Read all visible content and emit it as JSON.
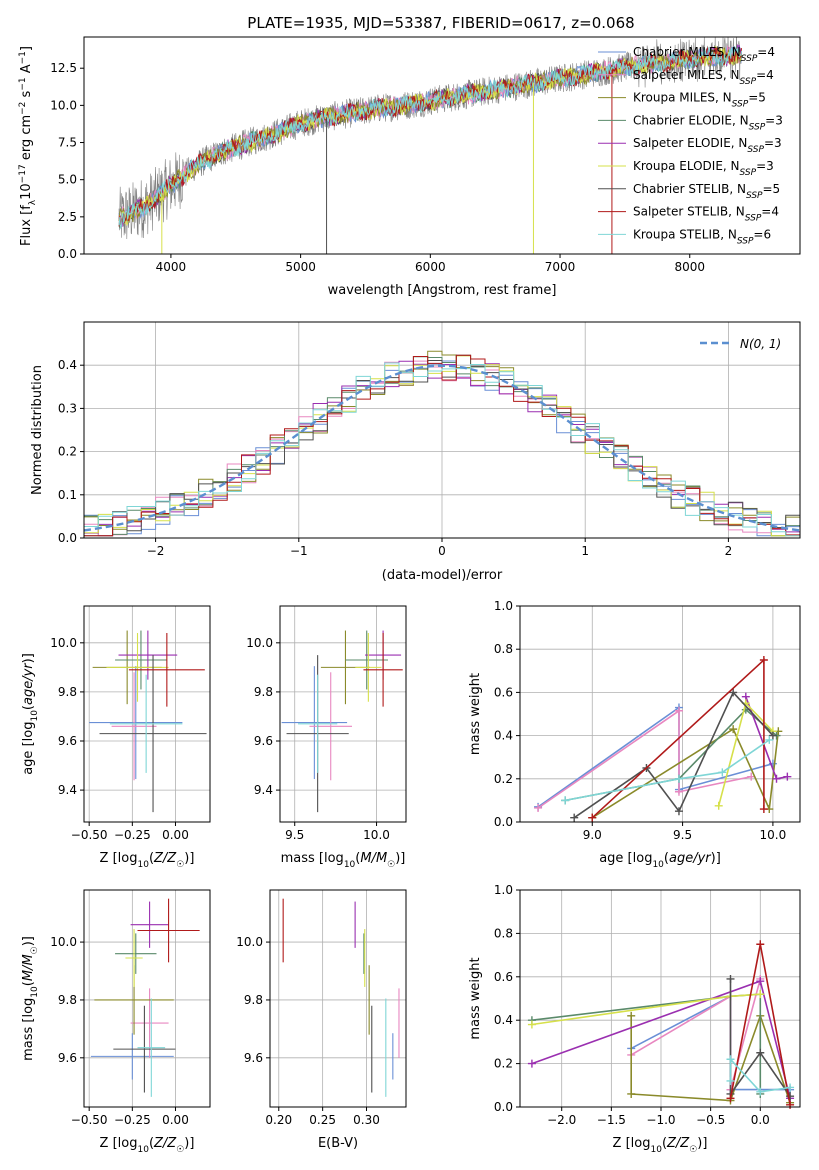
{
  "figure": {
    "title": "PLATE=1935, MJD=53387, FIBERID=0617, z=0.068"
  },
  "legend_entries": [
    {
      "name": "Chabrier MILES, N",
      "sub": "SSP",
      "tail": "=4",
      "color": "#6a8fd6"
    },
    {
      "name": "Salpeter MILES, N",
      "sub": "SSP",
      "tail": "=4",
      "color": "#e887c0"
    },
    {
      "name": "Kroupa MILES, N",
      "sub": "SSP",
      "tail": "=5",
      "color": "#8a8a2a"
    },
    {
      "name": "Chabrier ELODIE, N",
      "sub": "SSP",
      "tail": "=3",
      "color": "#5a8a6a"
    },
    {
      "name": "Salpeter ELODIE, N",
      "sub": "SSP",
      "tail": "=3",
      "color": "#9a2fb0"
    },
    {
      "name": "Kroupa ELODIE, N",
      "sub": "SSP",
      "tail": "=3",
      "color": "#d6e04a"
    },
    {
      "name": "Chabrier STELIB, N",
      "sub": "SSP",
      "tail": "=5",
      "color": "#505050"
    },
    {
      "name": "Salpeter STELIB, N",
      "sub": "SSP",
      "tail": "=4",
      "color": "#b01a1a"
    },
    {
      "name": "Kroupa STELIB, N",
      "sub": "SSP",
      "tail": "=6",
      "color": "#7fd6d6"
    }
  ],
  "chart_data": [
    {
      "id": "spectrum",
      "type": "line",
      "xlabel": "wavelength [Angstrom, rest frame]",
      "ylabel": "Flux [f_λ 10^-17 erg cm^-2 s^-1 A^-1]",
      "xlim": [
        3330,
        8850
      ],
      "ylim": [
        0,
        14.6
      ],
      "xticks": [
        4000,
        5000,
        6000,
        7000,
        8000
      ],
      "yticks": [
        0.0,
        2.5,
        5.0,
        7.5,
        10.0,
        12.5
      ],
      "ytick_labels": [
        "0.0",
        "2.5",
        "5.0",
        "7.5",
        "10.0",
        "12.5"
      ],
      "continuum": {
        "x": [
          3600,
          3800,
          4000,
          4200,
          4400,
          4600,
          4800,
          5000,
          5200,
          5400,
          5600,
          5800,
          6000,
          6200,
          6400,
          6600,
          6800,
          7000,
          7200,
          7400,
          7600,
          7800,
          8000,
          8200,
          8400
        ],
        "y": [
          2.4,
          3.2,
          4.6,
          6.0,
          6.9,
          7.5,
          8.1,
          8.8,
          9.2,
          9.5,
          9.8,
          10.0,
          10.3,
          10.6,
          10.9,
          11.2,
          11.5,
          11.8,
          12.1,
          12.4,
          12.7,
          12.9,
          13.1,
          13.3,
          13.4
        ]
      }
    },
    {
      "id": "residuals",
      "type": "histogram",
      "xlabel": "(data-model)/error",
      "ylabel": "Normed distribution",
      "xlim": [
        -2.5,
        2.5
      ],
      "ylim": [
        0,
        0.5
      ],
      "xticks": [
        -2,
        -1,
        0,
        1,
        2
      ],
      "yticks": [
        0.0,
        0.1,
        0.2,
        0.3,
        0.4
      ],
      "ytick_labels": [
        "0.0",
        "0.1",
        "0.2",
        "0.3",
        "0.4"
      ],
      "gaussian_label": "N(0, 1)",
      "bin_width": 0.1
    },
    {
      "id": "age_vs_Z",
      "type": "errorbar",
      "xlabel": "Z [log10(Z/Z☉)]",
      "ylabel": "age  [log10(age/yr)]",
      "xlim": [
        -0.53,
        0.2
      ],
      "ylim": [
        9.27,
        10.15
      ],
      "xticks": [
        -0.5,
        -0.25,
        0.0
      ],
      "xtick_labels": [
        "−0.50",
        "−0.25",
        "0.00"
      ],
      "yticks": [
        9.4,
        9.6,
        9.8,
        10.0
      ],
      "ytick_labels": [
        "9.4",
        "9.6",
        "9.8",
        "10.0"
      ],
      "points": [
        {
          "x": -0.23,
          "xerr": 0.27,
          "y": 9.675,
          "yerr": 0.23
        },
        {
          "x": -0.24,
          "xerr": 0.13,
          "y": 9.66,
          "yerr": 0.22
        },
        {
          "x": -0.28,
          "xerr": 0.2,
          "y": 9.9,
          "yerr": 0.15
        },
        {
          "x": -0.2,
          "xerr": 0.15,
          "y": 9.93,
          "yerr": 0.12
        },
        {
          "x": -0.16,
          "xerr": 0.17,
          "y": 9.95,
          "yerr": 0.1
        },
        {
          "x": -0.22,
          "xerr": 0.18,
          "y": 9.9,
          "yerr": 0.14
        },
        {
          "x": -0.13,
          "xerr": 0.31,
          "y": 9.63,
          "yerr": 0.32
        },
        {
          "x": -0.05,
          "xerr": 0.22,
          "y": 9.89,
          "yerr": 0.15
        },
        {
          "x": -0.17,
          "xerr": 0.21,
          "y": 9.67,
          "yerr": 0.2
        }
      ]
    },
    {
      "id": "age_vs_mass",
      "type": "errorbar",
      "xlabel": "mass [log10(M/M☉)]",
      "xlim": [
        9.41,
        10.18
      ],
      "ylim": [
        9.27,
        10.15
      ],
      "xticks": [
        9.5,
        10.0
      ],
      "xtick_labels": [
        "9.5",
        "10.0"
      ],
      "yticks": [
        9.4,
        9.6,
        9.8,
        10.0
      ],
      "ytick_labels": [
        "9.4",
        "9.6",
        "9.8",
        "10.0"
      ],
      "points": [
        {
          "x": 9.62,
          "xerr": 0.2,
          "y": 9.675,
          "yerr": 0.23
        },
        {
          "x": 9.72,
          "xerr": 0.13,
          "y": 9.66,
          "yerr": 0.22
        },
        {
          "x": 9.81,
          "xerr": 0.15,
          "y": 9.9,
          "yerr": 0.15
        },
        {
          "x": 9.94,
          "xerr": 0.13,
          "y": 9.93,
          "yerr": 0.12
        },
        {
          "x": 10.04,
          "xerr": 0.11,
          "y": 9.95,
          "yerr": 0.1
        },
        {
          "x": 9.95,
          "xerr": 0.08,
          "y": 9.9,
          "yerr": 0.14
        },
        {
          "x": 9.64,
          "xerr": 0.19,
          "y": 9.63,
          "yerr": 0.32
        },
        {
          "x": 10.04,
          "xerr": 0.12,
          "y": 9.89,
          "yerr": 0.15
        },
        {
          "x": 9.64,
          "xerr": 0.12,
          "y": 9.67,
          "yerr": 0.2
        }
      ]
    },
    {
      "id": "weight_vs_age",
      "type": "line",
      "xlabel": "age  [log10(age/yr)]",
      "ylabel": "mass weight",
      "xlim": [
        8.6,
        10.15
      ],
      "ylim": [
        0,
        1.0
      ],
      "xticks": [
        9.0,
        9.5,
        10.0
      ],
      "xtick_labels": [
        "9.0",
        "9.5",
        "10.0"
      ],
      "yticks": [
        0.0,
        0.2,
        0.4,
        0.6,
        0.8,
        1.0
      ],
      "ytick_labels": [
        "0.0",
        "0.2",
        "0.4",
        "0.6",
        "0.8",
        "1.0"
      ],
      "series": [
        {
          "x": [
            8.7,
            9.48,
            9.48,
            10.0
          ],
          "y": [
            0.07,
            0.53,
            0.15,
            0.27
          ]
        },
        {
          "x": [
            8.7,
            9.48,
            9.48,
            9.88
          ],
          "y": [
            0.065,
            0.515,
            0.14,
            0.21
          ]
        },
        {
          "x": [
            9.0,
            9.78,
            9.98,
            10.03
          ],
          "y": [
            0.02,
            0.43,
            0.06,
            0.42
          ]
        },
        {
          "x": [
            8.85,
            9.48,
            9.85,
            10.02
          ],
          "y": [
            0.1,
            0.2,
            0.52,
            0.4
          ]
        },
        {
          "x": [
            9.85,
            10.02,
            10.08
          ],
          "y": [
            0.58,
            0.2,
            0.21
          ]
        },
        {
          "x": [
            9.7,
            9.85,
            10.0
          ],
          "y": [
            0.075,
            0.55,
            0.42
          ]
        },
        {
          "x": [
            8.9,
            9.3,
            9.48,
            9.78,
            10.0
          ],
          "y": [
            0.02,
            0.25,
            0.05,
            0.6,
            0.4
          ]
        },
        {
          "x": [
            9.0,
            9.95,
            9.95
          ],
          "y": [
            0.02,
            0.75,
            0.06
          ]
        },
        {
          "x": [
            8.85,
            9.48,
            9.72,
            9.98
          ],
          "y": [
            0.1,
            0.2,
            0.23,
            0.38
          ]
        }
      ]
    },
    {
      "id": "mass_vs_Z",
      "type": "errorbar",
      "xlabel": "Z [log10(Z/Z☉)]",
      "ylabel": "mass [log10(M/M☉)]",
      "xlim": [
        -0.53,
        0.2
      ],
      "ylim": [
        9.43,
        10.18
      ],
      "xticks": [
        -0.5,
        -0.25,
        0.0
      ],
      "xtick_labels": [
        "−0.50",
        "−0.25",
        "0.00"
      ],
      "yticks": [
        9.6,
        9.8,
        10.0
      ],
      "ytick_labels": [
        "9.6",
        "9.8",
        "10.0"
      ],
      "points": [
        {
          "x": -0.25,
          "xerr": 0.24,
          "y": 9.605,
          "yerr": 0.08
        },
        {
          "x": -0.15,
          "xerr": 0.11,
          "y": 9.72,
          "yerr": 0.12
        },
        {
          "x": -0.24,
          "xerr": 0.23,
          "y": 9.8,
          "yerr": 0.12
        },
        {
          "x": -0.23,
          "xerr": 0.12,
          "y": 9.96,
          "yerr": 0.07
        },
        {
          "x": -0.15,
          "xerr": 0.11,
          "y": 10.06,
          "yerr": 0.08
        },
        {
          "x": -0.24,
          "xerr": 0.05,
          "y": 9.945,
          "yerr": 0.1
        },
        {
          "x": -0.18,
          "xerr": 0.18,
          "y": 9.63,
          "yerr": 0.15
        },
        {
          "x": -0.04,
          "xerr": 0.18,
          "y": 10.04,
          "yerr": 0.11
        },
        {
          "x": -0.14,
          "xerr": 0.08,
          "y": 9.635,
          "yerr": 0.17
        }
      ]
    },
    {
      "id": "mass_vs_EBV",
      "type": "errorbar",
      "xlabel": "E(B-V)",
      "xlim": [
        0.19,
        0.345
      ],
      "ylim": [
        9.43,
        10.18
      ],
      "xticks": [
        0.2,
        0.25,
        0.3
      ],
      "xtick_labels": [
        "0.20",
        "0.25",
        "0.30"
      ],
      "yticks": [
        9.6,
        9.8,
        10.0
      ],
      "ytick_labels": [
        "9.6",
        "9.8",
        "10.0"
      ],
      "points": [
        {
          "x": 0.33,
          "y": 9.605,
          "yerr": 0.08
        },
        {
          "x": 0.337,
          "y": 9.72,
          "yerr": 0.12
        },
        {
          "x": 0.303,
          "y": 9.8,
          "yerr": 0.12
        },
        {
          "x": 0.297,
          "y": 9.96,
          "yerr": 0.07
        },
        {
          "x": 0.287,
          "y": 10.06,
          "yerr": 0.08
        },
        {
          "x": 0.298,
          "y": 9.945,
          "yerr": 0.1
        },
        {
          "x": 0.306,
          "y": 9.63,
          "yerr": 0.15
        },
        {
          "x": 0.205,
          "y": 10.04,
          "yerr": 0.11
        },
        {
          "x": 0.322,
          "y": 9.635,
          "yerr": 0.17
        }
      ]
    },
    {
      "id": "weight_vs_Z",
      "type": "line",
      "xlabel": "Z [log10(Z/Z☉)]",
      "ylabel": "mass weight",
      "xlim": [
        -2.42,
        0.4
      ],
      "ylim": [
        0,
        1.0
      ],
      "xticks": [
        -2.0,
        -1.5,
        -1.0,
        -0.5,
        0.0
      ],
      "xtick_labels": [
        "−2.0",
        "−1.5",
        "−1.0",
        "−0.5",
        "0.0"
      ],
      "yticks": [
        0.0,
        0.2,
        0.4,
        0.6,
        0.8,
        1.0
      ],
      "ytick_labels": [
        "0.0",
        "0.2",
        "0.4",
        "0.6",
        "0.8",
        "1.0"
      ],
      "series": [
        {
          "x": [
            -1.3,
            -0.3,
            -0.3,
            0.3
          ],
          "y": [
            0.27,
            0.51,
            0.08,
            0.08
          ]
        },
        {
          "x": [
            -1.3,
            -0.3,
            -0.3,
            0.0
          ],
          "y": [
            0.24,
            0.51,
            0.08,
            0.59
          ]
        },
        {
          "x": [
            -1.3,
            -1.3,
            -0.3,
            0.0,
            0.3
          ],
          "y": [
            0.42,
            0.06,
            0.03,
            0.42,
            0.02
          ]
        },
        {
          "x": [
            -2.3,
            -0.3,
            0.0,
            0.0
          ],
          "y": [
            0.4,
            0.51,
            0.52,
            0.06
          ]
        },
        {
          "x": [
            -2.3,
            0.0,
            0.3
          ],
          "y": [
            0.2,
            0.58,
            0.04
          ]
        },
        {
          "x": [
            -2.3,
            -0.3,
            0.0
          ],
          "y": [
            0.38,
            0.51,
            0.52
          ]
        },
        {
          "x": [
            -0.3,
            -0.3,
            0.0,
            0.3
          ],
          "y": [
            0.59,
            0.06,
            0.25,
            0.05
          ]
        },
        {
          "x": [
            -0.3,
            0.0,
            0.3
          ],
          "y": [
            0.04,
            0.75,
            0.01
          ]
        },
        {
          "x": [
            -0.3,
            -0.3,
            0.0,
            0.3
          ],
          "y": [
            0.12,
            0.22,
            0.07,
            0.09
          ]
        }
      ]
    }
  ]
}
